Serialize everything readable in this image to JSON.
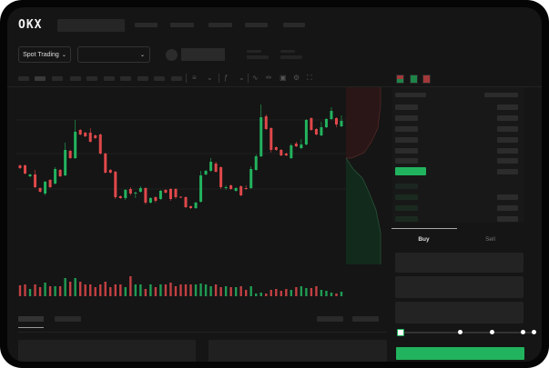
{
  "header": {
    "logo": "OKX"
  },
  "market_bar": {
    "mode_button": "Spot Trading",
    "mode_chevron": "chevron-down-icon",
    "pair_chevron": "chevron-down-icon"
  },
  "toolbar": {
    "icons": [
      "candle-type-icon",
      "chevron-down-icon",
      "indicator-icon",
      "chevron-down-icon",
      "line-icon",
      "ruler-icon",
      "camera-icon",
      "settings-icon",
      "fullscreen-icon"
    ]
  },
  "trade_panel": {
    "buy_tab": "Buy",
    "sell_tab": "Sell",
    "active_tab": "Buy",
    "leverage_slider_level": 0
  },
  "colors": {
    "up": "#22b35e",
    "down": "#e0484a",
    "background": "#151515",
    "accent": "#22b35e"
  },
  "chart_data": {
    "type": "candlestick",
    "ylim": [
      0,
      140
    ],
    "candles": [
      [
        58,
        55,
        59,
        54
      ],
      [
        58,
        49,
        59,
        48
      ],
      [
        46,
        48,
        49,
        45
      ],
      [
        48,
        34,
        53,
        33
      ],
      [
        33,
        29,
        34,
        28
      ],
      [
        27,
        40,
        41,
        25
      ],
      [
        42,
        34,
        43,
        33
      ],
      [
        38,
        54,
        56,
        37
      ],
      [
        53,
        46,
        54,
        45
      ],
      [
        47,
        75,
        83,
        46
      ],
      [
        74,
        66,
        75,
        65
      ],
      [
        66,
        95,
        108,
        65
      ],
      [
        97,
        92,
        98,
        91
      ],
      [
        94,
        90,
        95,
        89
      ],
      [
        94,
        84,
        99,
        83
      ],
      [
        91,
        88,
        92,
        87
      ],
      [
        92,
        71,
        93,
        70
      ],
      [
        71,
        50,
        72,
        49
      ],
      [
        53,
        50,
        54,
        49
      ],
      [
        51,
        23,
        52,
        21
      ],
      [
        24,
        22,
        25,
        21
      ],
      [
        22,
        31,
        32,
        20
      ],
      [
        32,
        27,
        34,
        25
      ],
      [
        27,
        28,
        29,
        22
      ],
      [
        29,
        33,
        35,
        28
      ],
      [
        33,
        17,
        34,
        15
      ],
      [
        17,
        22,
        23,
        16
      ],
      [
        23,
        19,
        24,
        17
      ],
      [
        21,
        30,
        31,
        20
      ],
      [
        31,
        28,
        32,
        27
      ],
      [
        32,
        21,
        33,
        19
      ],
      [
        32,
        23,
        33,
        21
      ],
      [
        23.5,
        22.5,
        24,
        22
      ],
      [
        23,
        12,
        24,
        11
      ],
      [
        13,
        11,
        14,
        10
      ],
      [
        11,
        17,
        18,
        10
      ],
      [
        18,
        47,
        52,
        17
      ],
      [
        48,
        52,
        53,
        47
      ],
      [
        52,
        62,
        66,
        51
      ],
      [
        60,
        51,
        62,
        50
      ],
      [
        56,
        34,
        57,
        32
      ],
      [
        33,
        34,
        36,
        31
      ],
      [
        36,
        32,
        37,
        31
      ],
      [
        30,
        33,
        34,
        29
      ],
      [
        35,
        25,
        36,
        24
      ],
      [
        33,
        32,
        36,
        31
      ],
      [
        33,
        54,
        57,
        32
      ],
      [
        53,
        68,
        70,
        52
      ],
      [
        68,
        111,
        125,
        67
      ],
      [
        112,
        98,
        114,
        97
      ],
      [
        99,
        75,
        100,
        72
      ],
      [
        78,
        75,
        79,
        74
      ],
      [
        75,
        69,
        76,
        68
      ],
      [
        71,
        69,
        72,
        68
      ],
      [
        66,
        80,
        82,
        65
      ],
      [
        82,
        79,
        84,
        78
      ],
      [
        77,
        81,
        87,
        76
      ],
      [
        81,
        108,
        109,
        80
      ],
      [
        110,
        97,
        111,
        96
      ],
      [
        98,
        92,
        99,
        91
      ],
      [
        91,
        100,
        106,
        90
      ],
      [
        100,
        109,
        110,
        99
      ],
      [
        109,
        118,
        122,
        108
      ],
      [
        110,
        103,
        111,
        100
      ],
      [
        101,
        107,
        113,
        100
      ]
    ],
    "volume": [
      12,
      13,
      8,
      13,
      10,
      15,
      11,
      11,
      11,
      20,
      16,
      20,
      16,
      13,
      13,
      10,
      13,
      16,
      10,
      13,
      13,
      10,
      22,
      13,
      13,
      8,
      13,
      10,
      13,
      13,
      15,
      11,
      13,
      13,
      13,
      13,
      14,
      13,
      11,
      13,
      10,
      11,
      10,
      10,
      11,
      7,
      11,
      3,
      4,
      3,
      7,
      8,
      6,
      8,
      7,
      10,
      11,
      9,
      9,
      11,
      7,
      6,
      4,
      3,
      5
    ]
  }
}
